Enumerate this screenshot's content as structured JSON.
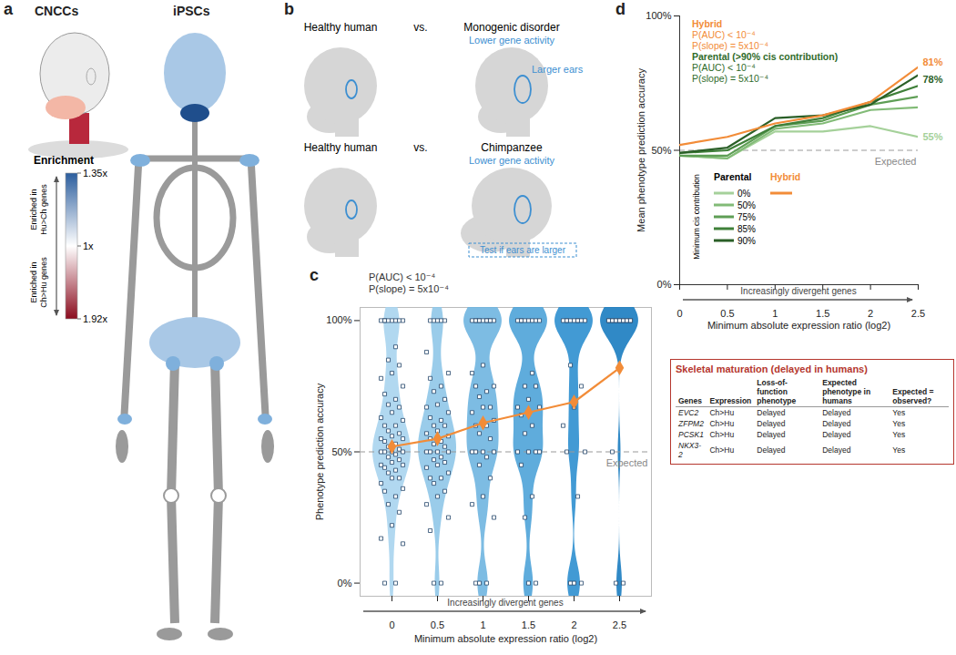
{
  "panel_labels": [
    "a",
    "b",
    "c",
    "d"
  ],
  "panel_a": {
    "cells": [
      "CNCCs",
      "iPSCs"
    ],
    "colorbar": {
      "title": "Enrichment",
      "top_label": "Enriched in Hu>Ch genes",
      "bottom_label": "Enriched in Ch>Hu genes",
      "ticks": [
        {
          "value": 1.35,
          "label": "1.35x"
        },
        {
          "value": 1,
          "label": "1x"
        },
        {
          "value": 1.92,
          "label": "1.92x"
        }
      ],
      "colors": [
        "#2c5e9e",
        "#ffffff",
        "#8b0c1e"
      ]
    }
  },
  "panel_b": {
    "rows": [
      {
        "left": "Healthy human",
        "vs": "vs.",
        "right": "Monogenic disorder",
        "right_note": "Lower gene activity",
        "phenotype": "Larger ears"
      },
      {
        "left": "Healthy human",
        "vs": "vs.",
        "right": "Chimpanzee",
        "right_note": "Lower gene activity",
        "phenotype": "Test if ears are larger"
      }
    ]
  },
  "chart_data": [
    {
      "type": "violin",
      "annotations": [
        "P(AUC) < 10⁻⁴",
        "P(slope) = 5x10⁻⁴"
      ],
      "x_note": "Increasingly divergent genes",
      "x_label": "Minimum absolute expression ratio (log2)",
      "y_label": "Phenotype prediction accuracy",
      "x": [
        0,
        0.5,
        1,
        1.5,
        2,
        2.5
      ],
      "colors": [
        "#a8d4ee",
        "#8fc6e8",
        "#6fb5e0",
        "#4ea3d8",
        "#2e8fcf",
        "#1a7cc0"
      ],
      "points": [
        [
          100,
          100,
          100,
          100,
          100,
          100,
          100,
          100,
          90,
          85,
          83,
          80,
          78,
          75,
          72,
          70,
          68,
          67,
          65,
          63,
          62,
          60,
          60,
          58,
          57,
          56,
          55,
          55,
          54,
          53,
          52,
          51,
          50,
          50,
          50,
          50,
          49,
          48,
          47,
          46,
          45,
          45,
          44,
          43,
          42,
          40,
          40,
          38,
          36,
          35,
          33,
          30,
          27,
          22,
          17,
          15,
          0,
          0
        ],
        [
          100,
          100,
          100,
          100,
          100,
          88,
          80,
          78,
          75,
          73,
          70,
          68,
          67,
          65,
          63,
          62,
          60,
          60,
          58,
          57,
          56,
          55,
          54,
          53,
          52,
          50,
          50,
          50,
          50,
          48,
          47,
          46,
          45,
          44,
          42,
          40,
          40,
          38,
          35,
          33,
          30,
          25,
          20,
          0,
          0
        ],
        [
          100,
          100,
          100,
          100,
          100,
          100,
          100,
          100,
          100,
          100,
          100,
          83,
          80,
          75,
          75,
          73,
          71,
          67,
          67,
          65,
          62,
          60,
          60,
          57,
          55,
          50,
          50,
          50,
          50,
          48,
          45,
          40,
          33,
          30,
          25,
          0,
          0,
          0
        ],
        [
          100,
          100,
          100,
          100,
          100,
          100,
          100,
          100,
          80,
          75,
          75,
          70,
          67,
          67,
          64,
          60,
          57,
          50,
          50,
          50,
          50,
          45,
          33,
          25,
          0,
          0
        ],
        [
          100,
          100,
          100,
          100,
          100,
          100,
          100,
          100,
          100,
          83,
          75,
          67,
          60,
          50,
          50,
          33,
          0,
          0,
          0
        ],
        [
          100,
          100,
          100,
          100,
          100,
          100,
          100,
          100,
          100,
          100,
          100,
          100,
          100,
          100,
          50,
          0,
          0
        ]
      ],
      "means": [
        52,
        55,
        61,
        65,
        69,
        82
      ],
      "mean_color": "#f28c38",
      "expected": {
        "value": 50,
        "label": "Expected"
      },
      "xlim": [
        -0.35,
        2.85
      ],
      "xticks": [
        0,
        0.5,
        1,
        1.5,
        2,
        2.5
      ],
      "ylim": [
        -5,
        105
      ],
      "yticks": [
        {
          "value": 0,
          "label": "0%"
        },
        {
          "value": 50,
          "label": "50%"
        },
        {
          "value": 100,
          "label": "100%"
        }
      ],
      "inset": {
        "title": "Skeletal maturation (delayed in humans)",
        "columns": [
          "Genes",
          "Expression",
          "Loss-of-function phenotype",
          "Expected phenotype in humans",
          "Expected = observed?"
        ],
        "rows": [
          [
            "EVC2",
            "Ch>Hu",
            "Delayed",
            "Delayed",
            "Yes"
          ],
          [
            "ZFPM2",
            "Ch>Hu",
            "Delayed",
            "Delayed",
            "Yes"
          ],
          [
            "PCSK1",
            "Ch>Hu",
            "Delayed",
            "Delayed",
            "Yes"
          ],
          [
            "NKX3-2",
            "Ch>Hu",
            "Delayed",
            "Delayed",
            "Yes"
          ]
        ]
      }
    },
    {
      "type": "line",
      "stats": [
        {
          "name": "Hybrid",
          "color": "#f28c38",
          "lines": [
            "P(AUC) < 10⁻⁴",
            "P(slope) = 5x10⁻⁴"
          ]
        },
        {
          "name": "Parental (>90% cis contribution)",
          "color": "#2f6b2a",
          "lines": [
            "P(AUC) < 10⁻⁴",
            "P(slope) = 5x10⁻⁴"
          ]
        }
      ],
      "legend": "bottom-left",
      "legend_title": "Minimum cis contribution",
      "x_note": "Increasingly divergent genes",
      "x_label": "Minimum absolute expression ratio (log2)",
      "y_label": "Mean phenotype prediction accuracy",
      "x": [
        0,
        0.5,
        1,
        1.5,
        2,
        2.5
      ],
      "series": [
        {
          "name": "0%",
          "group": "Parental",
          "color": "#a5d19a",
          "values": [
            48,
            47,
            57,
            57,
            59,
            55
          ],
          "value_labels": [
            null,
            null,
            null,
            null,
            null,
            "55%"
          ]
        },
        {
          "name": "50%",
          "group": "Parental",
          "color": "#82bb77",
          "values": [
            48,
            47,
            58,
            60,
            65,
            66
          ]
        },
        {
          "name": "75%",
          "group": "Parental",
          "color": "#5e9e55",
          "values": [
            48,
            48,
            59,
            61,
            67,
            70
          ]
        },
        {
          "name": "85%",
          "group": "Parental",
          "color": "#3f8039",
          "values": [
            49,
            50,
            59,
            62,
            68,
            74
          ]
        },
        {
          "name": "90%",
          "group": "Parental",
          "color": "#2a5f27",
          "values": [
            49,
            51,
            62,
            63,
            67,
            78
          ],
          "value_labels": [
            null,
            null,
            null,
            null,
            null,
            "78%"
          ]
        },
        {
          "name": "Hybrid",
          "color": "#f28c38",
          "values": [
            52,
            55,
            60,
            63,
            68,
            81
          ],
          "value_labels": [
            null,
            null,
            null,
            null,
            null,
            "81%"
          ]
        }
      ],
      "expected": {
        "value": 50,
        "label": "Expected"
      },
      "xlim": [
        0,
        2.5
      ],
      "xticks": [
        0,
        0.5,
        1,
        1.5,
        2,
        2.5
      ],
      "ylim": [
        0,
        100
      ],
      "yticks": [
        {
          "value": 0,
          "label": "0%"
        },
        {
          "value": 50,
          "label": "50%"
        },
        {
          "value": 100,
          "label": "100%"
        }
      ]
    }
  ]
}
